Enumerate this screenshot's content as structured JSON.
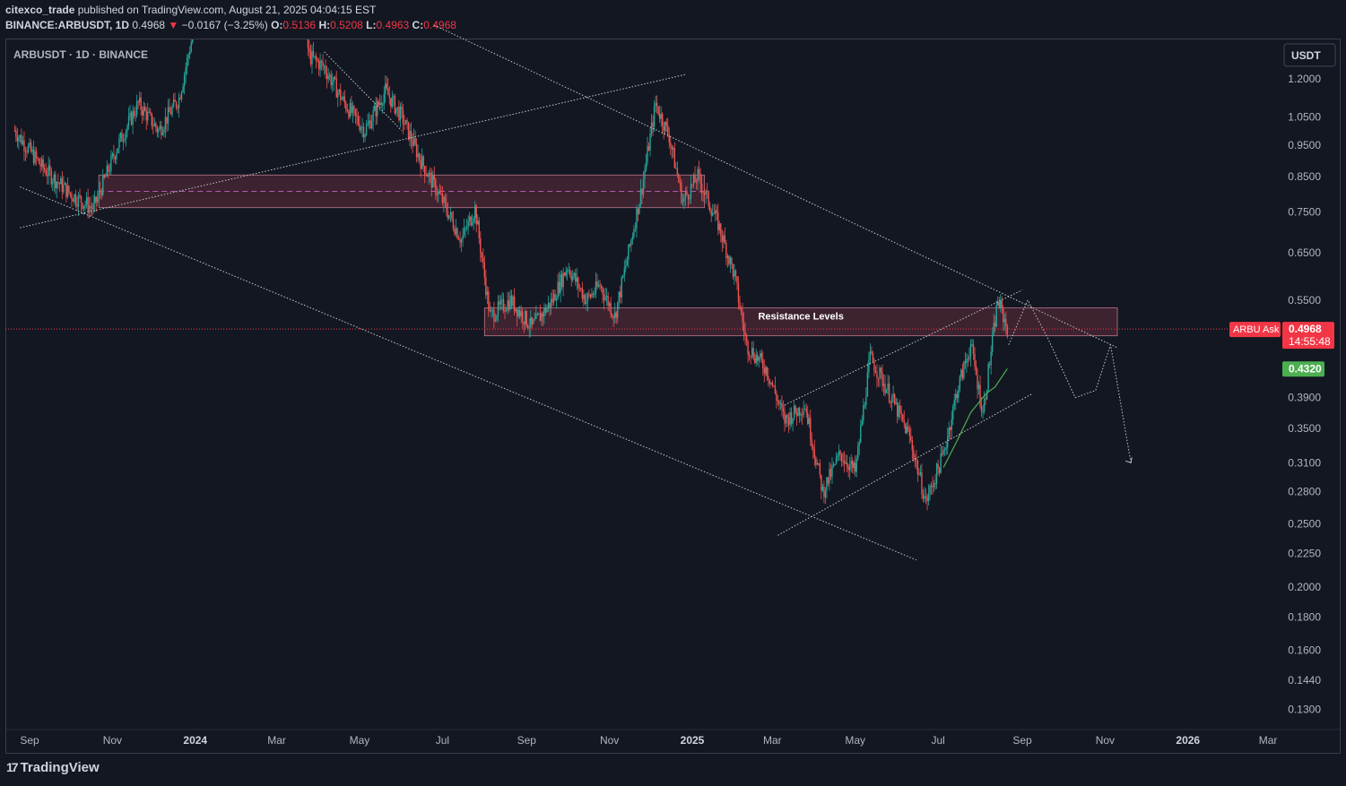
{
  "header": {
    "author": "citexco_trade",
    "published_text": " published on TradingView.com, August 21, 2025 04:04:15 EST",
    "symbol_line": "BINANCE:ARBUSDT, 1D",
    "price": "0.4968",
    "arrow": "▼",
    "change": "−0.0167 (−3.25%)",
    "o_label": "O:",
    "o_value": "0.5136",
    "h_label": "H:",
    "h_value": "0.5208",
    "l_label": "L:",
    "l_value": "0.4963",
    "c_label": "C:",
    "c_value": "0.4968"
  },
  "pane_label": "ARBUSDT · 1D · BINANCE",
  "currency_button": "USDT",
  "footer_logo": "TradingView",
  "footer_logo_mark": "17",
  "colors": {
    "background": "#131722",
    "up": "#26a69a",
    "down": "#ef5350",
    "zone_fill": "#5a2a3a",
    "zone_border": "#b87a8a",
    "price_line": "#f23645",
    "ma_line": "#4caf50",
    "trend_line": "#c8c8c8"
  },
  "chart_data": {
    "type": "candlestick",
    "scale": "log",
    "x_ticks": [
      "Sep",
      "Nov",
      "2024",
      "Mar",
      "May",
      "Jul",
      "Sep",
      "Nov",
      "2025",
      "Mar",
      "May",
      "Jul",
      "Sep",
      "Nov",
      "2026",
      "Mar"
    ],
    "y_ticks": [
      1.2,
      1.05,
      0.95,
      0.85,
      0.75,
      0.65,
      0.55,
      0.39,
      0.35,
      0.31,
      0.28,
      0.25,
      0.225,
      0.2,
      0.18,
      0.16,
      0.144,
      0.13
    ],
    "y_tick_labels": [
      "1.2000",
      "1.0500",
      "0.9500",
      "0.8500",
      "0.7500",
      "0.6500",
      "0.5500",
      "0.3900",
      "0.3500",
      "0.3100",
      "0.2800",
      "0.2500",
      "0.2250",
      "0.2000",
      "0.1800",
      "0.1600",
      "0.1440",
      "0.1300"
    ],
    "ylim": [
      0.125,
      1.38
    ],
    "last_price": 0.4968,
    "last_price_label": "0.4968",
    "countdown_label": "14:55:48",
    "ask_label": "ARBU Ask",
    "ma_value": 0.432,
    "ma_label": "0.4320",
    "close_series": [
      {
        "date": "2023-08-21",
        "close": 1.0
      },
      {
        "date": "2023-09-10",
        "close": 0.88
      },
      {
        "date": "2023-10-01",
        "close": 0.8
      },
      {
        "date": "2023-10-18",
        "close": 0.76
      },
      {
        "date": "2023-11-05",
        "close": 0.95
      },
      {
        "date": "2023-11-20",
        "close": 1.1
      },
      {
        "date": "2023-12-05",
        "close": 1.0
      },
      {
        "date": "2023-12-20",
        "close": 1.12
      },
      {
        "date": "2024-01-05",
        "close": 1.6
      },
      {
        "date": "2024-01-25",
        "close": 1.85
      },
      {
        "date": "2024-02-15",
        "close": 1.95
      },
      {
        "date": "2024-03-10",
        "close": 2.0
      },
      {
        "date": "2024-03-25",
        "close": 1.3
      },
      {
        "date": "2024-04-05",
        "close": 1.25
      },
      {
        "date": "2024-04-20",
        "close": 1.1
      },
      {
        "date": "2024-05-05",
        "close": 1.0
      },
      {
        "date": "2024-05-20",
        "close": 1.15
      },
      {
        "date": "2024-06-01",
        "close": 1.05
      },
      {
        "date": "2024-06-15",
        "close": 0.9
      },
      {
        "date": "2024-07-01",
        "close": 0.78
      },
      {
        "date": "2024-07-15",
        "close": 0.68
      },
      {
        "date": "2024-07-25",
        "close": 0.76
      },
      {
        "date": "2024-08-05",
        "close": 0.52
      },
      {
        "date": "2024-08-20",
        "close": 0.55
      },
      {
        "date": "2024-09-05",
        "close": 0.5
      },
      {
        "date": "2024-09-20",
        "close": 0.55
      },
      {
        "date": "2024-10-01",
        "close": 0.62
      },
      {
        "date": "2024-10-15",
        "close": 0.55
      },
      {
        "date": "2024-10-25",
        "close": 0.58
      },
      {
        "date": "2024-11-05",
        "close": 0.52
      },
      {
        "date": "2024-11-15",
        "close": 0.65
      },
      {
        "date": "2024-11-25",
        "close": 0.82
      },
      {
        "date": "2024-12-05",
        "close": 1.1
      },
      {
        "date": "2024-12-15",
        "close": 0.98
      },
      {
        "date": "2024-12-25",
        "close": 0.78
      },
      {
        "date": "2025-01-05",
        "close": 0.85
      },
      {
        "date": "2025-01-20",
        "close": 0.72
      },
      {
        "date": "2025-02-01",
        "close": 0.6
      },
      {
        "date": "2025-02-10",
        "close": 0.47
      },
      {
        "date": "2025-02-25",
        "close": 0.43
      },
      {
        "date": "2025-03-10",
        "close": 0.36
      },
      {
        "date": "2025-03-25",
        "close": 0.38
      },
      {
        "date": "2025-04-07",
        "close": 0.28
      },
      {
        "date": "2025-04-20",
        "close": 0.32
      },
      {
        "date": "2025-05-01",
        "close": 0.3
      },
      {
        "date": "2025-05-12",
        "close": 0.45
      },
      {
        "date": "2025-05-25",
        "close": 0.4
      },
      {
        "date": "2025-06-10",
        "close": 0.34
      },
      {
        "date": "2025-06-22",
        "close": 0.27
      },
      {
        "date": "2025-07-05",
        "close": 0.32
      },
      {
        "date": "2025-07-15",
        "close": 0.4
      },
      {
        "date": "2025-07-25",
        "close": 0.47
      },
      {
        "date": "2025-08-03",
        "close": 0.37
      },
      {
        "date": "2025-08-14",
        "close": 0.55
      },
      {
        "date": "2025-08-21",
        "close": 0.4968
      }
    ],
    "annotations": [
      {
        "type": "zone",
        "label": "Resistance Levels",
        "from": "2024-08-01",
        "to": "2025-11-10",
        "low": 0.485,
        "high": 0.535
      },
      {
        "type": "zone",
        "label": "",
        "from": "2023-10-22",
        "to": "2025-01-10",
        "low": 0.762,
        "high": 0.855
      }
    ]
  }
}
